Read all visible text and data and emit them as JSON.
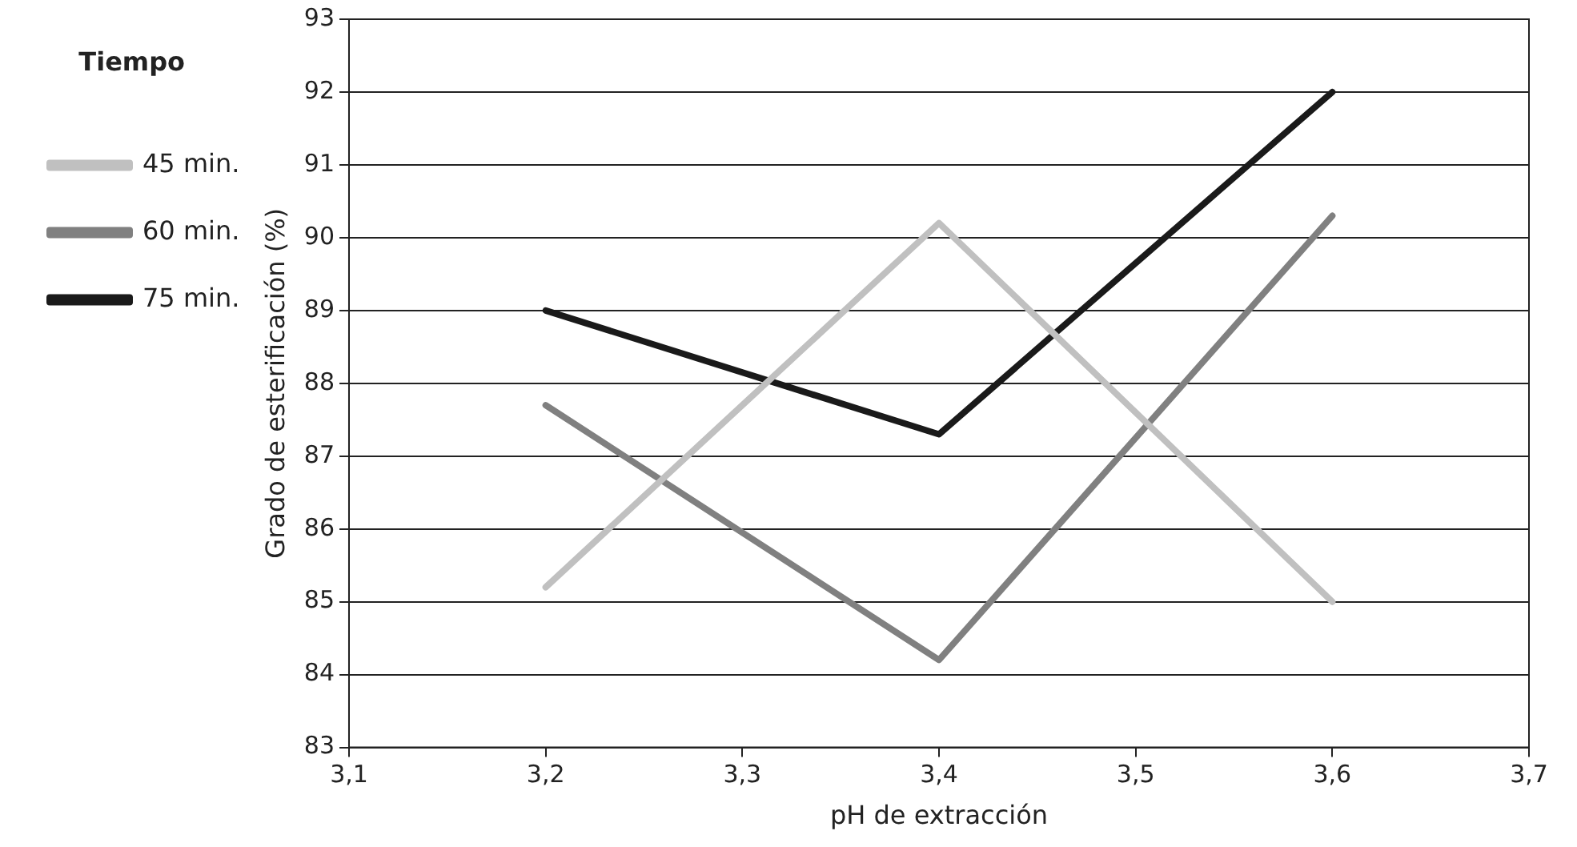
{
  "chart_data": {
    "type": "line",
    "xlabel": "pH de extracción",
    "ylabel": "Grado de esterificación (%)",
    "legend_title": "Tiempo",
    "legend": "left",
    "x": [
      3.2,
      3.4,
      3.6
    ],
    "series": [
      {
        "name": "45 min.",
        "color": "#c0c0c0",
        "values": [
          85.2,
          90.2,
          85.0
        ]
      },
      {
        "name": "60 min.",
        "color": "#808080",
        "values": [
          87.7,
          84.2,
          90.3
        ]
      },
      {
        "name": "75 min.",
        "color": "#1a1a1a",
        "values": [
          89.0,
          87.3,
          92.0
        ]
      }
    ],
    "xlim": [
      3.1,
      3.7
    ],
    "xticks": [
      {
        "value": 3.1,
        "label": "3,1"
      },
      {
        "value": 3.2,
        "label": "3,2"
      },
      {
        "value": 3.3,
        "label": "3,3"
      },
      {
        "value": 3.4,
        "label": "3,4"
      },
      {
        "value": 3.5,
        "label": "3,5"
      },
      {
        "value": 3.6,
        "label": "3,6"
      },
      {
        "value": 3.7,
        "label": "3,7"
      }
    ],
    "ylim": [
      83,
      93
    ],
    "yticks": [
      83,
      84,
      85,
      86,
      87,
      88,
      89,
      90,
      91,
      92,
      93
    ],
    "grid": "y",
    "marker": "none",
    "line_style": "solid"
  }
}
